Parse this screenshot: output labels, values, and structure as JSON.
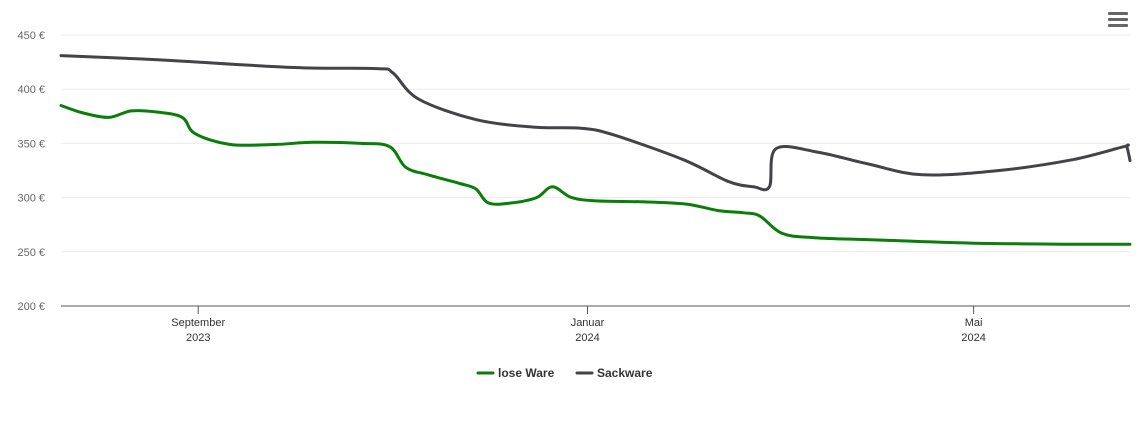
{
  "chart_data": {
    "type": "line",
    "y_ticks": [
      "200 €",
      "250 €",
      "300 €",
      "350 €",
      "400 €",
      "450 €"
    ],
    "x_ticks": [
      {
        "date": "2023-09-01",
        "line1": "September",
        "line2": "2023"
      },
      {
        "date": "2024-01-01",
        "line1": "Januar",
        "line2": "2024"
      },
      {
        "date": "2024-05-01",
        "line1": "Mai",
        "line2": "2024"
      }
    ],
    "ylim": [
      200,
      450
    ],
    "xlim": [
      "2023-07-20",
      "2024-06-19"
    ],
    "grid": true,
    "legend_position": "bottom-center",
    "series": [
      {
        "name": "lose Ware",
        "color": "#0a7d0a",
        "points": [
          [
            "2023-07-20",
            385
          ],
          [
            "2023-07-27",
            378
          ],
          [
            "2023-08-04",
            374
          ],
          [
            "2023-08-11",
            380
          ],
          [
            "2023-08-19",
            379
          ],
          [
            "2023-08-27",
            374
          ],
          [
            "2023-08-31",
            359
          ],
          [
            "2023-09-11",
            349
          ],
          [
            "2023-09-25",
            349
          ],
          [
            "2023-10-07",
            351
          ],
          [
            "2023-10-22",
            350
          ],
          [
            "2023-10-31",
            347
          ],
          [
            "2023-11-05",
            328
          ],
          [
            "2023-11-12",
            321
          ],
          [
            "2023-11-22",
            313
          ],
          [
            "2023-11-27",
            308
          ],
          [
            "2023-12-01",
            295
          ],
          [
            "2023-12-08",
            295
          ],
          [
            "2023-12-16",
            300
          ],
          [
            "2023-12-21",
            310
          ],
          [
            "2023-12-27",
            300
          ],
          [
            "2024-01-04",
            297
          ],
          [
            "2024-01-19",
            296
          ],
          [
            "2024-02-01",
            294
          ],
          [
            "2024-02-11",
            288
          ],
          [
            "2024-02-19",
            286
          ],
          [
            "2024-02-24",
            283
          ],
          [
            "2024-03-02",
            267
          ],
          [
            "2024-03-12",
            263
          ],
          [
            "2024-03-31",
            261
          ],
          [
            "2024-04-30",
            258
          ],
          [
            "2024-05-31",
            257
          ],
          [
            "2024-06-19",
            257
          ]
        ]
      },
      {
        "name": "Sackware",
        "color": "#434348",
        "points": [
          [
            "2023-07-20",
            431
          ],
          [
            "2023-08-20",
            427
          ],
          [
            "2023-10-01",
            420
          ],
          [
            "2023-10-27",
            419
          ],
          [
            "2023-11-01",
            415
          ],
          [
            "2023-11-09",
            391
          ],
          [
            "2023-11-27",
            372
          ],
          [
            "2023-12-15",
            365
          ],
          [
            "2023-12-30",
            364
          ],
          [
            "2024-01-09",
            358
          ],
          [
            "2024-01-31",
            335
          ],
          [
            "2024-02-14",
            315
          ],
          [
            "2024-02-22",
            310
          ],
          [
            "2024-02-27",
            310
          ],
          [
            "2024-02-29",
            345
          ],
          [
            "2024-03-13",
            342
          ],
          [
            "2024-03-29",
            331
          ],
          [
            "2024-04-15",
            321
          ],
          [
            "2024-05-09",
            325
          ],
          [
            "2024-06-01",
            335
          ],
          [
            "2024-06-17",
            347
          ],
          [
            "2024-06-18",
            347
          ],
          [
            "2024-06-19",
            334
          ]
        ]
      }
    ]
  }
}
